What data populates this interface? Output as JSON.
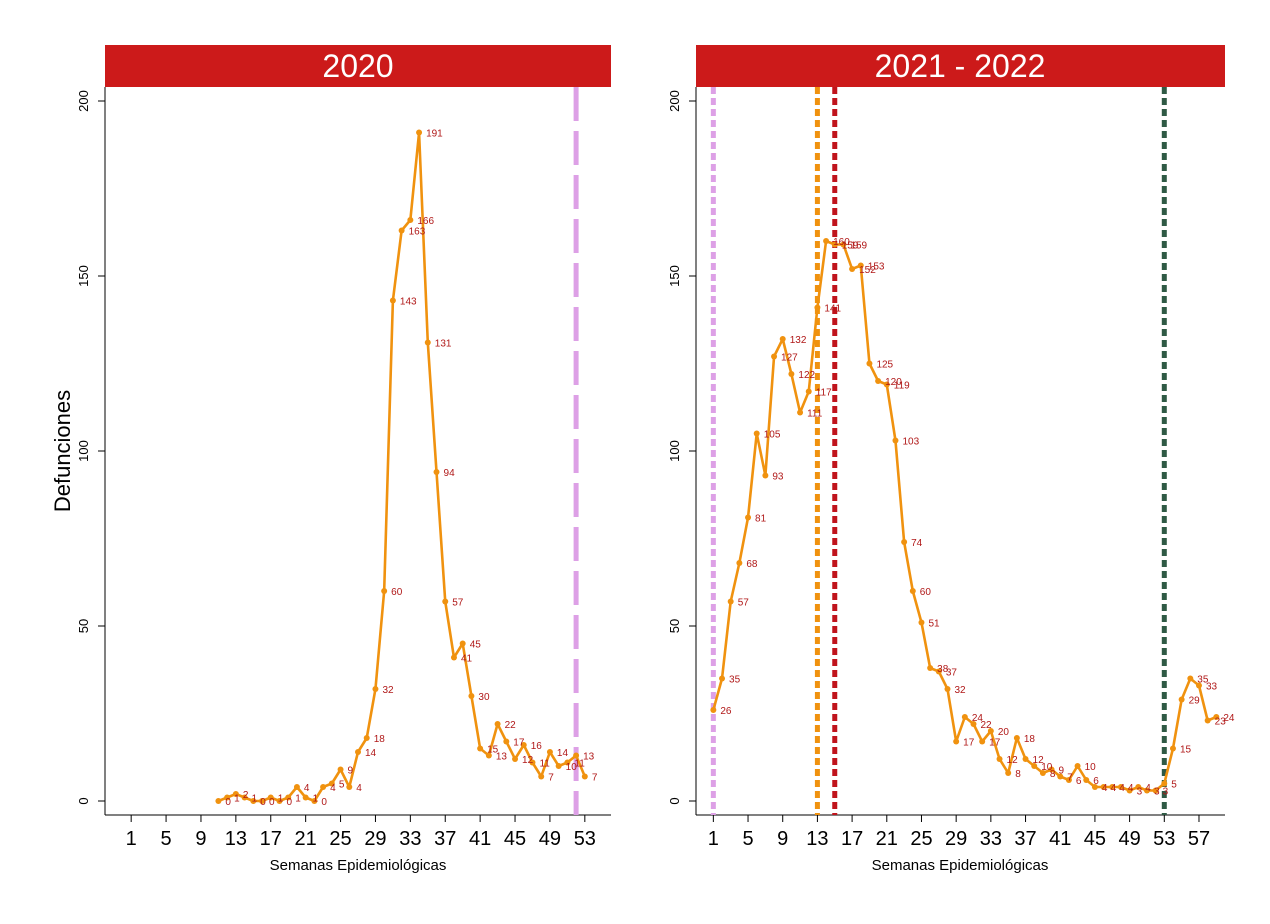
{
  "chart_data": [
    {
      "type": "line",
      "title": "2020",
      "xlabel": "Semanas Epidemiológicas",
      "ylabel": "Defunciones",
      "ylim": [
        0,
        200
      ],
      "yticks": [
        0,
        50,
        100,
        150,
        200
      ],
      "xlim": [
        -2,
        56
      ],
      "xticks": [
        1,
        5,
        9,
        13,
        17,
        21,
        25,
        29,
        33,
        37,
        41,
        45,
        49,
        53
      ],
      "grid": false,
      "colors": {
        "header": "#cc1a1a",
        "line": "#f0920f",
        "labels": "#b01818"
      },
      "series": [
        {
          "x": [
            11,
            12,
            13,
            14,
            15,
            16,
            17,
            18,
            19,
            20,
            21,
            22,
            23,
            24,
            25,
            26,
            27,
            28,
            29,
            30,
            31,
            32,
            33,
            34,
            35,
            36,
            37,
            38,
            39,
            40,
            41,
            42,
            43,
            44,
            45,
            46,
            47,
            48,
            49,
            50,
            51,
            52,
            53
          ],
          "values": [
            0,
            1,
            2,
            1,
            0,
            0,
            1,
            0,
            1,
            4,
            1,
            0,
            4,
            5,
            9,
            4,
            14,
            18,
            32,
            60,
            143,
            163,
            166,
            191,
            131,
            94,
            57,
            41,
            45,
            30,
            15,
            13,
            22,
            17,
            12,
            16,
            11,
            7,
            14,
            10,
            11,
            13,
            7
          ],
          "labels": [
            "0",
            "1",
            "2",
            "1",
            "0",
            "0",
            "1",
            "0",
            "1",
            "4",
            "1",
            "0",
            "4",
            "5",
            "9",
            "4",
            "14",
            "18",
            "32",
            "60",
            "143",
            "163",
            "166",
            "191",
            "131",
            "94",
            "57",
            "41",
            "45",
            "30",
            "15",
            "13",
            "22",
            "17",
            "12",
            "16",
            "11",
            "7",
            "14",
            "10",
            "11",
            "13",
            "7"
          ]
        }
      ],
      "vlines": [
        {
          "x": 52,
          "color": "#dda0e6",
          "style": "dashed"
        }
      ]
    },
    {
      "type": "line",
      "title": "2021 - 2022",
      "xlabel": "Semanas Epidemiológicas",
      "ylabel": "",
      "ylim": [
        0,
        200
      ],
      "yticks": [
        0,
        50,
        100,
        150,
        200
      ],
      "xlim": [
        -1,
        60
      ],
      "xticks": [
        1,
        5,
        9,
        13,
        17,
        21,
        25,
        29,
        33,
        37,
        41,
        45,
        49,
        53,
        57
      ],
      "grid": false,
      "colors": {
        "header": "#cc1a1a",
        "line": "#f0920f",
        "labels": "#b01818"
      },
      "series": [
        {
          "x": [
            1,
            2,
            3,
            4,
            5,
            6,
            7,
            8,
            9,
            10,
            11,
            12,
            13,
            14,
            15,
            16,
            17,
            18,
            19,
            20,
            21,
            22,
            23,
            24,
            25,
            26,
            27,
            28,
            29,
            30,
            31,
            32,
            33,
            34,
            35,
            36,
            37,
            38,
            39,
            40,
            41,
            42,
            43,
            44,
            45,
            46,
            47,
            48,
            49,
            50,
            51,
            52,
            53,
            54,
            55,
            56,
            57,
            58,
            59
          ],
          "values": [
            26,
            35,
            57,
            68,
            81,
            105,
            93,
            127,
            132,
            122,
            111,
            117,
            141,
            160,
            159,
            159,
            152,
            153,
            125,
            120,
            119,
            103,
            74,
            60,
            51,
            38,
            37,
            32,
            17,
            24,
            22,
            17,
            20,
            12,
            8,
            18,
            12,
            10,
            8,
            9,
            7,
            6,
            10,
            6,
            4,
            4,
            4,
            4,
            3,
            4,
            3,
            3,
            5,
            15,
            29,
            35,
            33,
            23,
            24
          ],
          "labels": [
            "26",
            "35",
            "57",
            "68",
            "81",
            "105",
            "93",
            "127",
            "132",
            "122",
            "111",
            "117",
            "141",
            "160",
            "159",
            "159",
            "152",
            "153",
            "125",
            "120",
            "119",
            "103",
            "74",
            "60",
            "51",
            "38",
            "37",
            "32",
            "17",
            "24",
            "22",
            "17",
            "20",
            "12",
            "8",
            "18",
            "12",
            "10",
            "8",
            "9",
            "7",
            "6",
            "10",
            "6",
            "4",
            "4",
            "4",
            "4",
            "3",
            "4",
            "3",
            "3",
            "5",
            "15",
            "29",
            "35",
            "33",
            "23",
            "24"
          ]
        }
      ],
      "vlines": [
        {
          "x": 1,
          "color": "#dda0e6",
          "style": "dotted"
        },
        {
          "x": 13,
          "color": "#f0920f",
          "style": "dotted"
        },
        {
          "x": 15,
          "color": "#c0141c",
          "style": "dotted"
        },
        {
          "x": 53,
          "color": "#2f5a45",
          "style": "dotted"
        }
      ]
    }
  ]
}
